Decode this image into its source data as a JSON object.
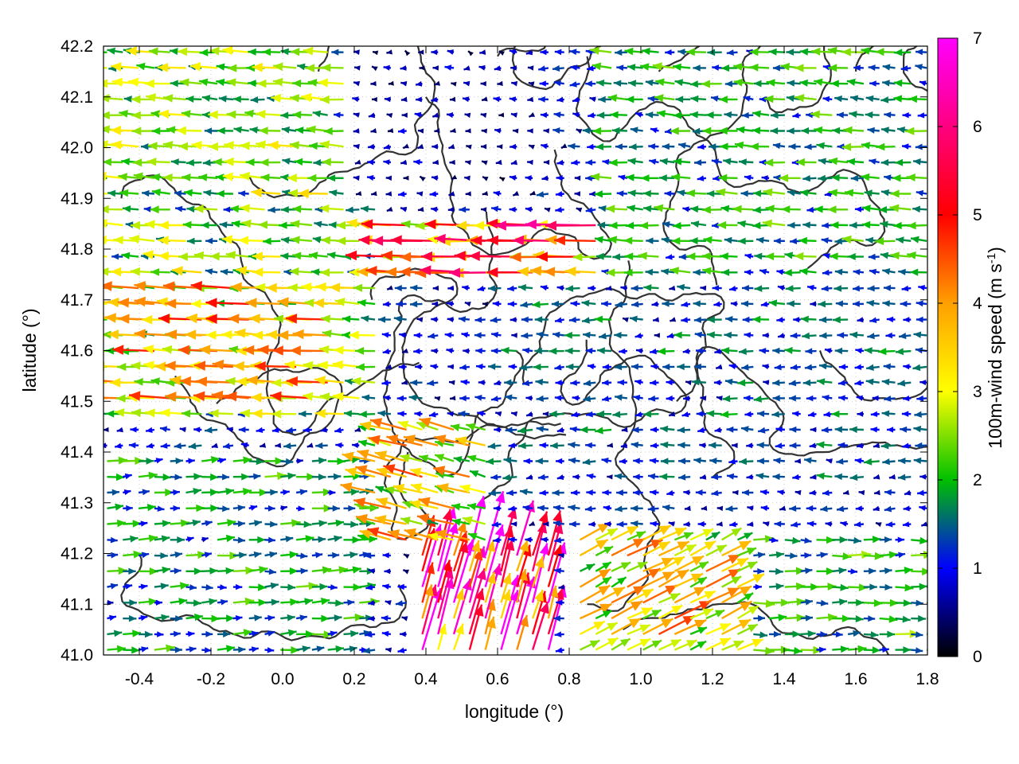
{
  "chart_data": {
    "type": "vector field",
    "xlabel": "longitude (°)",
    "ylabel": "latitude (°)",
    "xlim": [
      -0.5,
      1.8
    ],
    "ylim": [
      41.0,
      42.2
    ],
    "xticks": [
      "-0.4",
      "-0.2",
      "0.0",
      "0.2",
      "0.4",
      "0.6",
      "0.8",
      "1.0",
      "1.2",
      "1.4",
      "1.6",
      "1.8"
    ],
    "yticks": [
      "41.0",
      "41.1",
      "41.2",
      "41.3",
      "41.4",
      "41.5",
      "41.6",
      "41.7",
      "41.8",
      "41.9",
      "42.0",
      "42.1",
      "42.2"
    ],
    "colorbar": {
      "label": "100m-wind speed (m s",
      "label_superscript": "-1",
      "label_suffix": ")",
      "range": [
        0,
        7
      ],
      "ticks": [
        "0",
        "1",
        "2",
        "3",
        "4",
        "5",
        "6",
        "7"
      ],
      "colors": [
        "#000000",
        "#0000ff",
        "#00c000",
        "#ffff00",
        "#ffa000",
        "#ff0000",
        "#ff00ff"
      ]
    },
    "grid": true,
    "vectors": {
      "description_units": "u, v components in m/s on a regular lon/lat grid",
      "spacing_deg": [
        0.044,
        0.031
      ],
      "regions": [
        {
          "lon": [
            -0.5,
            0.3
          ],
          "lat": [
            41.45,
            42.2
          ],
          "u": -2.4,
          "v": 0.15
        },
        {
          "lon": [
            -0.5,
            0.15
          ],
          "lat": [
            41.5,
            41.75
          ],
          "u": -3.6,
          "v": 0.2
        },
        {
          "lon": [
            0.3,
            0.9
          ],
          "lat": [
            41.75,
            41.85
          ],
          "u": -4.6,
          "v": 0.1
        },
        {
          "lon": [
            0.2,
            0.7
          ],
          "lat": [
            41.9,
            42.2
          ],
          "u": -0.6,
          "v": 0.0
        },
        {
          "lon": [
            0.6,
            1.8
          ],
          "lat": [
            41.35,
            41.75
          ],
          "u": -1.3,
          "v": 0.0
        },
        {
          "lon": [
            0.9,
            1.8
          ],
          "lat": [
            41.75,
            42.2
          ],
          "u": -1.8,
          "v": 0.1
        },
        {
          "lon": [
            -0.5,
            0.25
          ],
          "lat": [
            41.0,
            41.4
          ],
          "u": 1.7,
          "v": 0.1
        },
        {
          "lon": [
            0.25,
            0.6
          ],
          "lat": [
            41.2,
            41.45
          ],
          "u": -3.2,
          "v": 0.8
        },
        {
          "lon": [
            0.35,
            0.75
          ],
          "lat": [
            41.0,
            41.2
          ],
          "u": 1.5,
          "v": 5.5
        },
        {
          "lon": [
            0.8,
            1.3
          ],
          "lat": [
            41.0,
            41.25
          ],
          "u": 3.0,
          "v": 1.5
        },
        {
          "lon": [
            1.3,
            1.8
          ],
          "lat": [
            41.0,
            41.25
          ],
          "u": 1.9,
          "v": 0.0
        }
      ]
    }
  }
}
